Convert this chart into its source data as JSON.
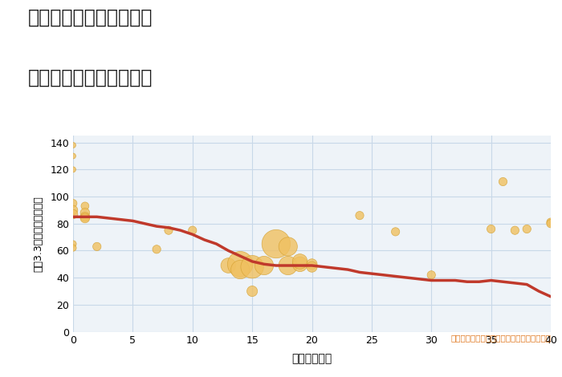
{
  "title_line1": "愛知県瀬戸市西本地町の",
  "title_line2": "築年数別中古戸建て価格",
  "xlabel": "築年数（年）",
  "ylabel": "坪（3.3㎡）単価（万円）",
  "background_color": "#ffffff",
  "plot_bg_color": "#eef3f8",
  "grid_color": "#c8d8e8",
  "line_color": "#c0392b",
  "bubble_color": "#f0c060",
  "bubble_edge_color": "#d4a030",
  "annotation_color": "#e07820",
  "annotation_text": "円の大きさは、取引のあった物件面積を示す",
  "xlim": [
    0,
    40
  ],
  "ylim": [
    0,
    145
  ],
  "xticks": [
    0,
    5,
    10,
    15,
    20,
    25,
    30,
    35,
    40
  ],
  "yticks": [
    0,
    20,
    40,
    60,
    80,
    100,
    120,
    140
  ],
  "scatter_x": [
    0,
    0,
    0,
    0,
    0,
    0,
    0,
    0,
    1,
    1,
    1,
    1,
    2,
    7,
    8,
    10,
    13,
    14,
    14,
    15,
    15,
    16,
    17,
    18,
    18,
    19,
    19,
    20,
    20,
    24,
    27,
    30,
    35,
    36,
    37,
    38,
    40,
    40
  ],
  "scatter_y": [
    138,
    130,
    120,
    95,
    90,
    87,
    65,
    62,
    93,
    88,
    85,
    84,
    63,
    61,
    75,
    75,
    49,
    50,
    46,
    48,
    30,
    49,
    65,
    49,
    63,
    50,
    52,
    50,
    48,
    86,
    74,
    42,
    76,
    111,
    75,
    76,
    81,
    80
  ],
  "scatter_size": [
    25,
    25,
    25,
    50,
    70,
    70,
    35,
    35,
    50,
    70,
    70,
    70,
    55,
    55,
    55,
    55,
    180,
    520,
    280,
    420,
    90,
    280,
    650,
    280,
    280,
    180,
    180,
    90,
    90,
    55,
    55,
    55,
    55,
    55,
    55,
    55,
    55,
    55
  ],
  "line_x": [
    0,
    0.5,
    1,
    1.5,
    2,
    3,
    4,
    5,
    6,
    7,
    8,
    9,
    10,
    11,
    12,
    13,
    14,
    15,
    16,
    17,
    18,
    19,
    20,
    21,
    22,
    23,
    24,
    25,
    26,
    27,
    28,
    29,
    30,
    31,
    32,
    33,
    34,
    35,
    36,
    37,
    38,
    39,
    40
  ],
  "line_y": [
    85,
    85,
    85,
    85,
    85,
    84,
    83,
    82,
    80,
    78,
    77,
    75,
    72,
    68,
    65,
    60,
    56,
    52,
    50,
    49,
    49,
    49,
    49,
    48,
    47,
    46,
    44,
    43,
    42,
    41,
    40,
    39,
    38,
    38,
    38,
    37,
    37,
    38,
    37,
    36,
    35,
    30,
    26
  ]
}
